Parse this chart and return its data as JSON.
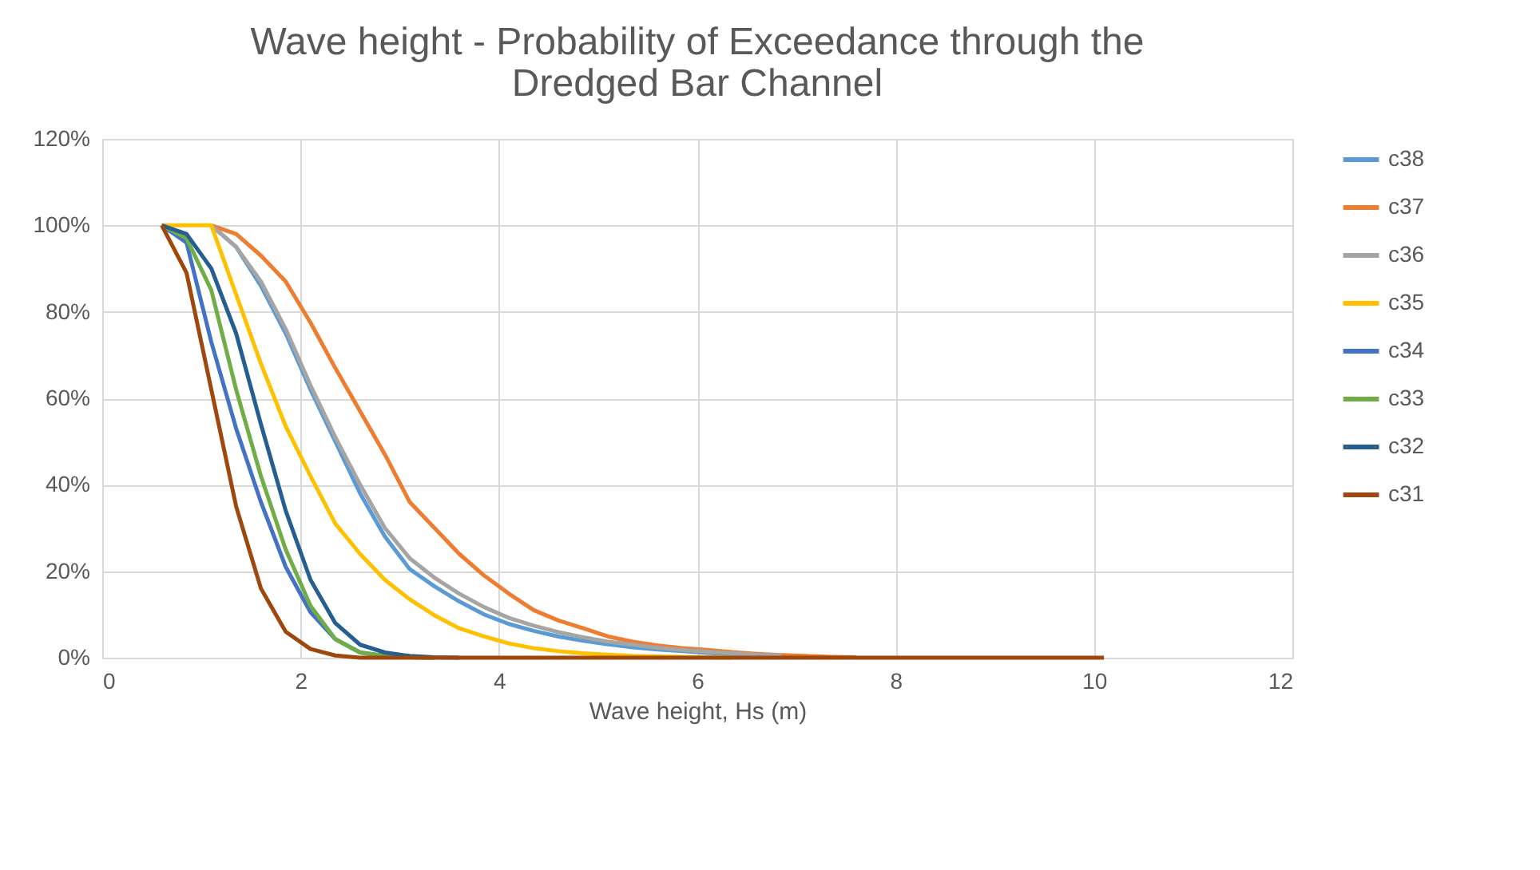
{
  "chart_data": {
    "type": "line",
    "title": "Wave height - Probability of Exceedance through the Dredged Bar Channel",
    "xlabel": "Wave height, Hs (m)",
    "x": [
      0.6,
      0.85,
      1.1,
      1.35,
      1.6,
      1.85,
      2.1,
      2.35,
      2.6,
      2.85,
      3.1,
      3.35,
      3.6,
      3.85,
      4.1,
      4.35,
      4.6,
      4.85,
      5.1,
      5.35,
      5.6,
      5.85,
      6.1,
      6.35,
      6.6,
      6.85,
      7.1,
      7.35,
      7.6,
      7.85,
      8.1,
      8.35,
      8.6,
      8.85,
      9.1,
      9.35,
      9.6,
      9.85,
      10.1
    ],
    "series": [
      {
        "name": "c38",
        "color": "#5b9bd5",
        "values": [
          null,
          null,
          100,
          95,
          86,
          75,
          62,
          50,
          38,
          28,
          20.5,
          16.5,
          13,
          10,
          7.8,
          6.2,
          4.9,
          3.9,
          3.1,
          2.4,
          1.9,
          1.5,
          1.1,
          0.8,
          0.6,
          null,
          null,
          null,
          null,
          null,
          null,
          null,
          null,
          null,
          null,
          null,
          null,
          null,
          null
        ]
      },
      {
        "name": "c37",
        "color": "#ed7d31",
        "values": [
          null,
          null,
          100,
          98,
          93,
          87,
          77.5,
          67,
          57,
          47,
          36,
          30,
          24,
          19,
          14.8,
          11,
          8.6,
          6.8,
          4.9,
          3.7,
          2.8,
          2.2,
          1.8,
          1.3,
          0.9,
          0.6,
          0.4,
          0.2,
          0.1,
          null,
          null,
          null,
          null,
          null,
          null,
          null,
          null,
          null,
          null
        ]
      },
      {
        "name": "c36",
        "color": "#a5a5a5",
        "values": [
          null,
          null,
          100,
          95,
          87,
          76,
          63,
          51,
          40,
          30,
          23,
          18.5,
          14.8,
          11.7,
          9.2,
          7.4,
          5.9,
          4.7,
          3.7,
          3,
          2.3,
          1.8,
          1.4,
          1,
          0.7,
          0.5,
          null,
          null,
          null,
          null,
          null,
          null,
          null,
          null,
          null,
          null,
          null,
          null,
          null
        ]
      },
      {
        "name": "c35",
        "color": "#ffc000",
        "values": [
          100,
          100,
          100,
          84,
          68,
          53.5,
          42,
          31,
          24,
          18,
          13.5,
          9.8,
          6.8,
          4.9,
          3.3,
          2.2,
          1.5,
          1,
          0.7,
          0.4,
          0.3,
          0.2,
          0.1,
          0,
          null,
          null,
          null,
          null,
          null,
          null,
          null,
          null,
          null,
          null,
          null,
          null,
          null,
          null,
          null
        ]
      },
      {
        "name": "c34",
        "color": "#4472c4",
        "values": [
          100,
          96,
          73,
          53,
          36,
          21,
          10.5,
          4.3,
          1.2,
          0.4,
          0.1,
          0,
          null,
          null,
          null,
          null,
          null,
          null,
          null,
          null,
          null,
          null,
          null,
          null,
          null,
          null,
          null,
          null,
          null,
          null,
          null,
          null,
          null,
          null,
          null,
          null,
          null,
          null,
          null
        ]
      },
      {
        "name": "c33",
        "color": "#70ad47",
        "values": [
          100,
          97,
          85,
          62,
          42,
          25,
          12,
          4.3,
          1.2,
          0.4,
          0.1,
          0,
          null,
          null,
          null,
          null,
          null,
          null,
          null,
          null,
          null,
          null,
          null,
          null,
          null,
          null,
          null,
          null,
          null,
          null,
          null,
          null,
          null,
          null,
          null,
          null,
          null,
          null,
          null
        ]
      },
      {
        "name": "c32",
        "color": "#255e91",
        "values": [
          100,
          98,
          90,
          75,
          54,
          34,
          18,
          8,
          3,
          1.2,
          0.4,
          0.1,
          0,
          null,
          null,
          null,
          null,
          null,
          null,
          null,
          null,
          null,
          null,
          null,
          null,
          null,
          null,
          null,
          null,
          null,
          null,
          null,
          null,
          null,
          null,
          null,
          null,
          null,
          null
        ]
      },
      {
        "name": "c31",
        "color": "#9e480e",
        "values": [
          100,
          89,
          62,
          35,
          16,
          6,
          2,
          0.5,
          0,
          0,
          0,
          0,
          0,
          0,
          0,
          0,
          0,
          0,
          0,
          0,
          0,
          0,
          0,
          0,
          0,
          0,
          0,
          0,
          0,
          0,
          0,
          0,
          0,
          0,
          0,
          0,
          0,
          0,
          0
        ]
      }
    ],
    "xlim": [
      0,
      12
    ],
    "xticks": [
      0,
      2,
      4,
      6,
      8,
      10,
      12
    ],
    "ylim": [
      0,
      120
    ],
    "yticks": [
      {
        "value": 0,
        "label": "0%"
      },
      {
        "value": 20,
        "label": "20%"
      },
      {
        "value": 40,
        "label": "40%"
      },
      {
        "value": 60,
        "label": "60%"
      },
      {
        "value": 80,
        "label": "80%"
      },
      {
        "value": 100,
        "label": "100%"
      },
      {
        "value": 120,
        "label": "120%"
      }
    ],
    "grid": true,
    "legend": "right",
    "marker": "none",
    "line_style": "solid"
  }
}
